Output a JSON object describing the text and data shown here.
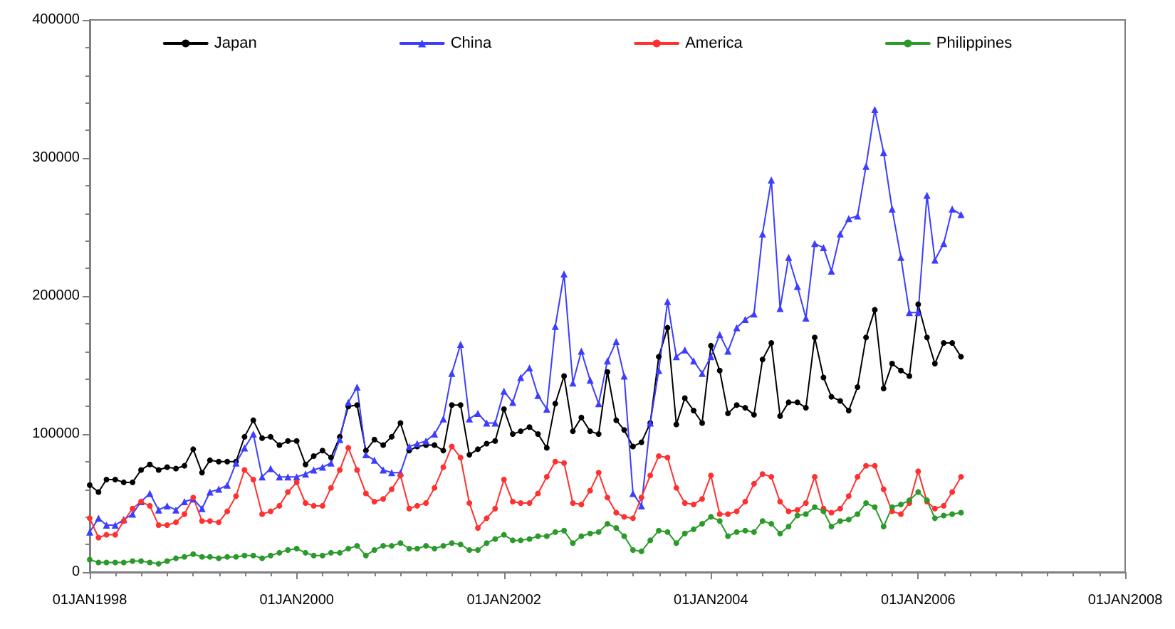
{
  "chart_data": {
    "type": "line",
    "x": [
      "1998-01",
      "1998-02",
      "1998-03",
      "1998-04",
      "1998-05",
      "1998-06",
      "1998-07",
      "1998-08",
      "1998-09",
      "1998-10",
      "1998-11",
      "1998-12",
      "1999-01",
      "1999-02",
      "1999-03",
      "1999-04",
      "1999-05",
      "1999-06",
      "1999-07",
      "1999-08",
      "1999-09",
      "1999-10",
      "1999-11",
      "1999-12",
      "2000-01",
      "2000-02",
      "2000-03",
      "2000-04",
      "2000-05",
      "2000-06",
      "2000-07",
      "2000-08",
      "2000-09",
      "2000-10",
      "2000-11",
      "2000-12",
      "2001-01",
      "2001-02",
      "2001-03",
      "2001-04",
      "2001-05",
      "2001-06",
      "2001-07",
      "2001-08",
      "2001-09",
      "2001-10",
      "2001-11",
      "2001-12",
      "2002-01",
      "2002-02",
      "2002-03",
      "2002-04",
      "2002-05",
      "2002-06",
      "2002-07",
      "2002-08",
      "2002-09",
      "2002-10",
      "2002-11",
      "2002-12",
      "2003-01",
      "2003-02",
      "2003-03",
      "2003-04",
      "2003-05",
      "2003-06",
      "2003-07",
      "2003-08",
      "2003-09",
      "2003-10",
      "2003-11",
      "2003-12",
      "2004-01",
      "2004-02",
      "2004-03",
      "2004-04",
      "2004-05",
      "2004-06",
      "2004-07",
      "2004-08",
      "2004-09",
      "2004-10",
      "2004-11",
      "2004-12",
      "2005-01",
      "2005-02",
      "2005-03",
      "2005-04",
      "2005-05",
      "2005-06",
      "2005-07",
      "2005-08",
      "2005-09",
      "2005-10",
      "2005-11",
      "2005-12",
      "2006-01",
      "2006-02",
      "2006-03",
      "2006-04",
      "2006-05",
      "2006-06"
    ],
    "series": [
      {
        "name": "Japan",
        "color": "#000000",
        "values": [
          63000,
          58000,
          67000,
          67000,
          65000,
          65000,
          74000,
          78000,
          74000,
          76000,
          75000,
          77000,
          89000,
          72000,
          81000,
          80000,
          80000,
          80000,
          98000,
          110000,
          97000,
          98000,
          92000,
          95000,
          95000,
          78000,
          84000,
          88000,
          83000,
          98000,
          120000,
          121000,
          88000,
          96000,
          92000,
          98000,
          108000,
          88000,
          91000,
          92000,
          92000,
          88000,
          121000,
          121000,
          85000,
          89000,
          93000,
          95000,
          118000,
          100000,
          102000,
          105000,
          100000,
          90000,
          122000,
          142000,
          102000,
          112000,
          102000,
          100000,
          145000,
          110000,
          103000,
          91000,
          94000,
          108000,
          156000,
          177000,
          107000,
          126000,
          117000,
          108000,
          164000,
          146000,
          115000,
          121000,
          119000,
          114000,
          154000,
          166000,
          113000,
          123000,
          123000,
          119000,
          170000,
          141000,
          127000,
          124000,
          117000,
          134000,
          170000,
          190000,
          133000,
          151000,
          146000,
          142000,
          194000,
          170000,
          151000,
          166000,
          166000,
          156000
        ]
      },
      {
        "name": "China",
        "color": "#3d3dff",
        "marker": "triangle",
        "values": [
          29000,
          39000,
          34000,
          34000,
          38000,
          42000,
          51000,
          57000,
          45000,
          48000,
          45000,
          51000,
          53000,
          46000,
          58000,
          60000,
          63000,
          79000,
          90000,
          100000,
          69000,
          75000,
          69000,
          69000,
          69000,
          71000,
          74000,
          76000,
          79000,
          96000,
          123000,
          134000,
          85000,
          81000,
          74000,
          72000,
          72000,
          91000,
          93000,
          95000,
          100000,
          111000,
          144000,
          165000,
          111000,
          115000,
          108000,
          108000,
          131000,
          123000,
          141000,
          148000,
          128000,
          118000,
          178000,
          216000,
          137000,
          160000,
          139000,
          122000,
          153000,
          167000,
          142000,
          57000,
          48000,
          108000,
          146000,
          196000,
          156000,
          161000,
          153000,
          144000,
          156000,
          172000,
          160000,
          177000,
          183000,
          187000,
          245000,
          284000,
          191000,
          228000,
          207000,
          184000,
          238000,
          235000,
          218000,
          245000,
          256000,
          258000,
          294000,
          335000,
          304000,
          263000,
          228000,
          188000,
          188000,
          273000,
          226000,
          238000,
          263000,
          259000
        ]
      },
      {
        "name": "America",
        "color": "#ff3030",
        "values": [
          39000,
          25000,
          27000,
          27000,
          37000,
          46000,
          51000,
          48000,
          34000,
          34000,
          36000,
          42000,
          54000,
          37000,
          37000,
          36000,
          44000,
          55000,
          74000,
          67000,
          42000,
          44000,
          48000,
          58000,
          65000,
          50000,
          48000,
          48000,
          61000,
          74000,
          90000,
          74000,
          57000,
          51000,
          53000,
          60000,
          70000,
          46000,
          48000,
          50000,
          61000,
          76000,
          91000,
          83000,
          50000,
          32000,
          39000,
          46000,
          67000,
          51000,
          50000,
          50000,
          57000,
          69000,
          80000,
          79000,
          50000,
          49000,
          59000,
          72000,
          54000,
          43000,
          40000,
          39000,
          54000,
          70000,
          84000,
          83000,
          61000,
          50000,
          49000,
          53000,
          70000,
          42000,
          42000,
          44000,
          51000,
          64000,
          71000,
          69000,
          51000,
          44000,
          45000,
          50000,
          69000,
          46000,
          43000,
          46000,
          55000,
          69000,
          77000,
          77000,
          60000,
          44000,
          42000,
          50000,
          73000,
          51000,
          46000,
          48000,
          58000,
          69000
        ]
      },
      {
        "name": "Philippines",
        "color": "#2a9a2a",
        "values": [
          9000,
          7000,
          7000,
          7000,
          7000,
          8000,
          8000,
          7000,
          6000,
          8000,
          10000,
          11000,
          13000,
          11000,
          11000,
          10000,
          11000,
          11000,
          12000,
          12000,
          10000,
          12000,
          14000,
          16000,
          17000,
          14000,
          12000,
          12000,
          14000,
          14000,
          17000,
          19000,
          12000,
          16000,
          19000,
          19000,
          21000,
          17000,
          17000,
          19000,
          17000,
          19000,
          21000,
          20000,
          16000,
          16000,
          21000,
          24000,
          27000,
          23000,
          23000,
          24000,
          26000,
          26000,
          29000,
          30000,
          21000,
          26000,
          28000,
          29000,
          35000,
          32000,
          26000,
          16000,
          15000,
          23000,
          30000,
          29000,
          21000,
          28000,
          31000,
          35000,
          40000,
          37000,
          26000,
          29000,
          30000,
          29000,
          37000,
          35000,
          28000,
          33000,
          41000,
          42000,
          47000,
          44000,
          33000,
          37000,
          38000,
          42000,
          50000,
          47000,
          33000,
          47000,
          49000,
          52000,
          58000,
          52000,
          39000,
          41000,
          42000,
          43000
        ]
      }
    ],
    "xlim": [
      "1998-01-01",
      "2008-01-01"
    ],
    "xticks": [
      {
        "value": "1998-01-01",
        "label": "01JAN1998"
      },
      {
        "value": "2000-01-01",
        "label": "01JAN2000"
      },
      {
        "value": "2002-01-01",
        "label": "01JAN2002"
      },
      {
        "value": "2004-01-01",
        "label": "01JAN2004"
      },
      {
        "value": "2006-01-01",
        "label": "01JAN2006"
      },
      {
        "value": "2008-01-01",
        "label": "01JAN2008"
      }
    ],
    "ylim": [
      0,
      400000
    ],
    "yticks": [
      0,
      100000,
      200000,
      300000,
      400000
    ],
    "legend": "top",
    "marker": "circle",
    "line_style": "solid"
  }
}
